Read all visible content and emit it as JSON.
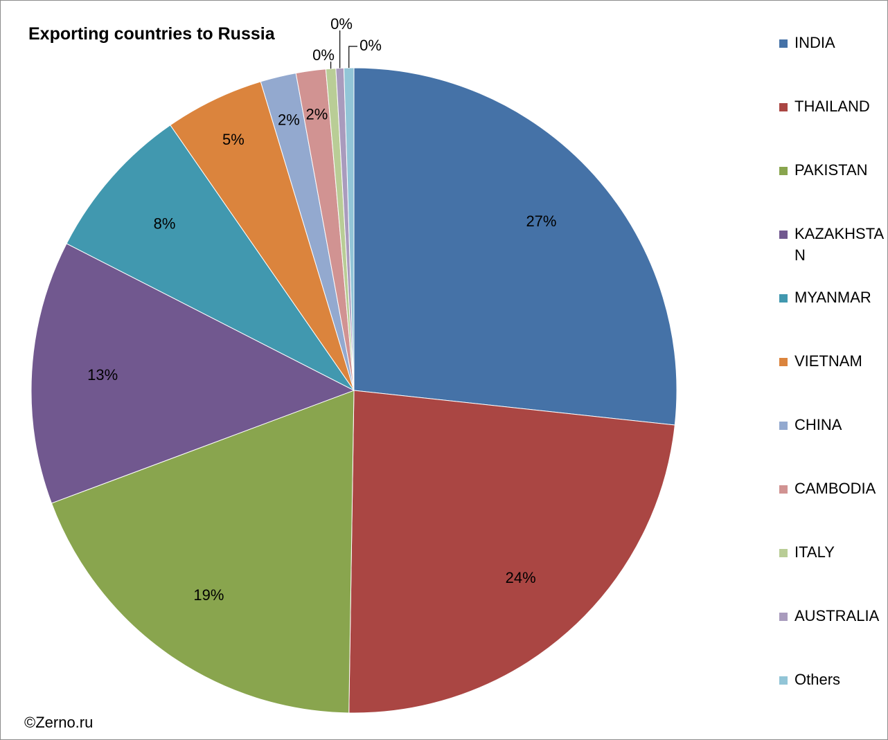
{
  "chart_data": {
    "type": "pie",
    "title": "Exporting countries to Russia",
    "categories": [
      "INDIA",
      "THAILAND",
      "PAKISTAN",
      "KAZAKHSTAN",
      "MYANMAR",
      "VIETNAM",
      "CHINA",
      "CAMBODIA",
      "ITALY",
      "AUSTRALIA",
      "Others"
    ],
    "values": [
      26.9,
      23.7,
      19.2,
      13.3,
      7.9,
      5.0,
      1.8,
      1.5,
      0.5,
      0.4,
      0.5
    ],
    "data_labels": [
      "27%",
      "24%",
      "19%",
      "13%",
      "8%",
      "5%",
      "2%",
      "2%",
      "0%",
      "0%",
      "0%"
    ],
    "legend_position": "right",
    "colors": [
      "#4572a7",
      "#aa4643",
      "#89a54e",
      "#71588f",
      "#4198af",
      "#db843d",
      "#93a9cf",
      "#d19392",
      "#b9cd96",
      "#a99bbd",
      "#92c5d7"
    ]
  },
  "source_credit": "©Zerno.ru"
}
